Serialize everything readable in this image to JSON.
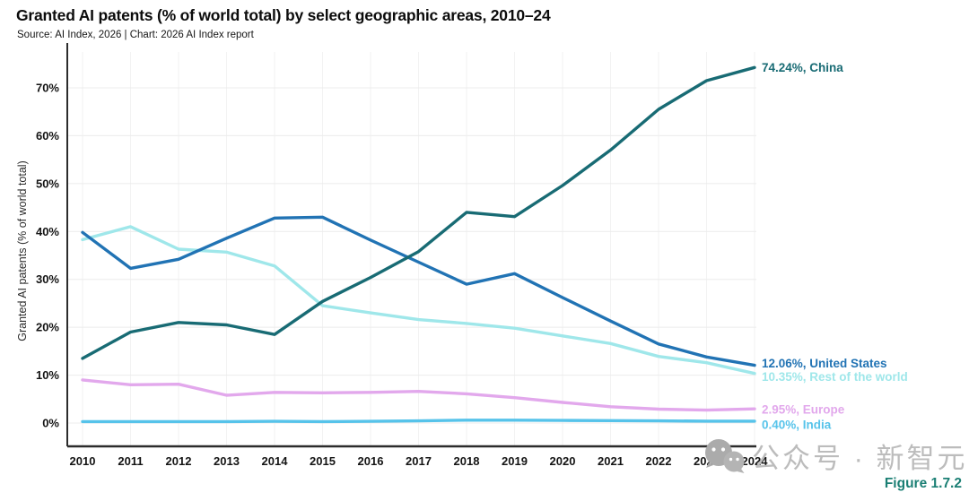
{
  "header": {
    "title": "Granted AI patents (% of world total) by select geographic areas, 2010–24",
    "source": "Source: AI Index, 2026 | Chart: 2026 AI Index report"
  },
  "figure_label": "Figure 1.7.2",
  "watermark": {
    "icon": "wechat-icon",
    "text": "公众号 · 新智元",
    "color": "#bcbcbc"
  },
  "chart_data": {
    "type": "line",
    "title": "Granted AI patents (% of world total) by select geographic areas, 2010–24",
    "xlabel": "",
    "ylabel": "Granted AI patents (% of world total)",
    "x": [
      2010,
      2011,
      2012,
      2013,
      2014,
      2015,
      2016,
      2017,
      2018,
      2019,
      2020,
      2021,
      2022,
      2023,
      2024
    ],
    "yticks": [
      0,
      10,
      20,
      30,
      40,
      50,
      60,
      70
    ],
    "ytick_suffix": "%",
    "ylim": [
      0,
      78
    ],
    "grid": true,
    "legend_position": "end-labels-right",
    "series": [
      {
        "name": "Rest of the world",
        "color": "#9fe7ea",
        "end_label": "10.35%, Rest of the world",
        "label_dy": 4,
        "values": [
          38.3,
          41.0,
          36.3,
          35.7,
          32.8,
          24.5,
          23.0,
          21.6,
          20.8,
          19.8,
          18.2,
          16.6,
          13.9,
          12.6,
          10.35
        ]
      },
      {
        "name": "Europe",
        "color": "#e2a8ec",
        "end_label": "2.95%, Europe",
        "label_dy": 1,
        "values": [
          9.0,
          8.0,
          8.1,
          5.8,
          6.4,
          6.3,
          6.4,
          6.6,
          6.1,
          5.3,
          4.3,
          3.4,
          2.9,
          2.7,
          2.95
        ]
      },
      {
        "name": "India",
        "color": "#56c3ea",
        "end_label": "0.40%, India",
        "label_dy": 4,
        "values": [
          0.3,
          0.3,
          0.3,
          0.3,
          0.35,
          0.3,
          0.35,
          0.45,
          0.6,
          0.6,
          0.55,
          0.5,
          0.45,
          0.4,
          0.4
        ]
      },
      {
        "name": "United States",
        "color": "#2173b4",
        "end_label": "12.06%, United States",
        "label_dy": -2,
        "values": [
          39.8,
          32.3,
          34.2,
          38.6,
          42.8,
          43.0,
          38.2,
          33.6,
          29.0,
          31.2,
          26.2,
          21.3,
          16.5,
          13.8,
          12.06
        ]
      },
      {
        "name": "China",
        "color": "#186b74",
        "end_label": "74.24%, China",
        "label_dy": 0,
        "values": [
          13.5,
          19.0,
          21.0,
          20.5,
          18.5,
          25.4,
          30.4,
          35.8,
          44.0,
          43.1,
          49.6,
          57.0,
          65.5,
          71.5,
          74.24
        ]
      }
    ]
  }
}
